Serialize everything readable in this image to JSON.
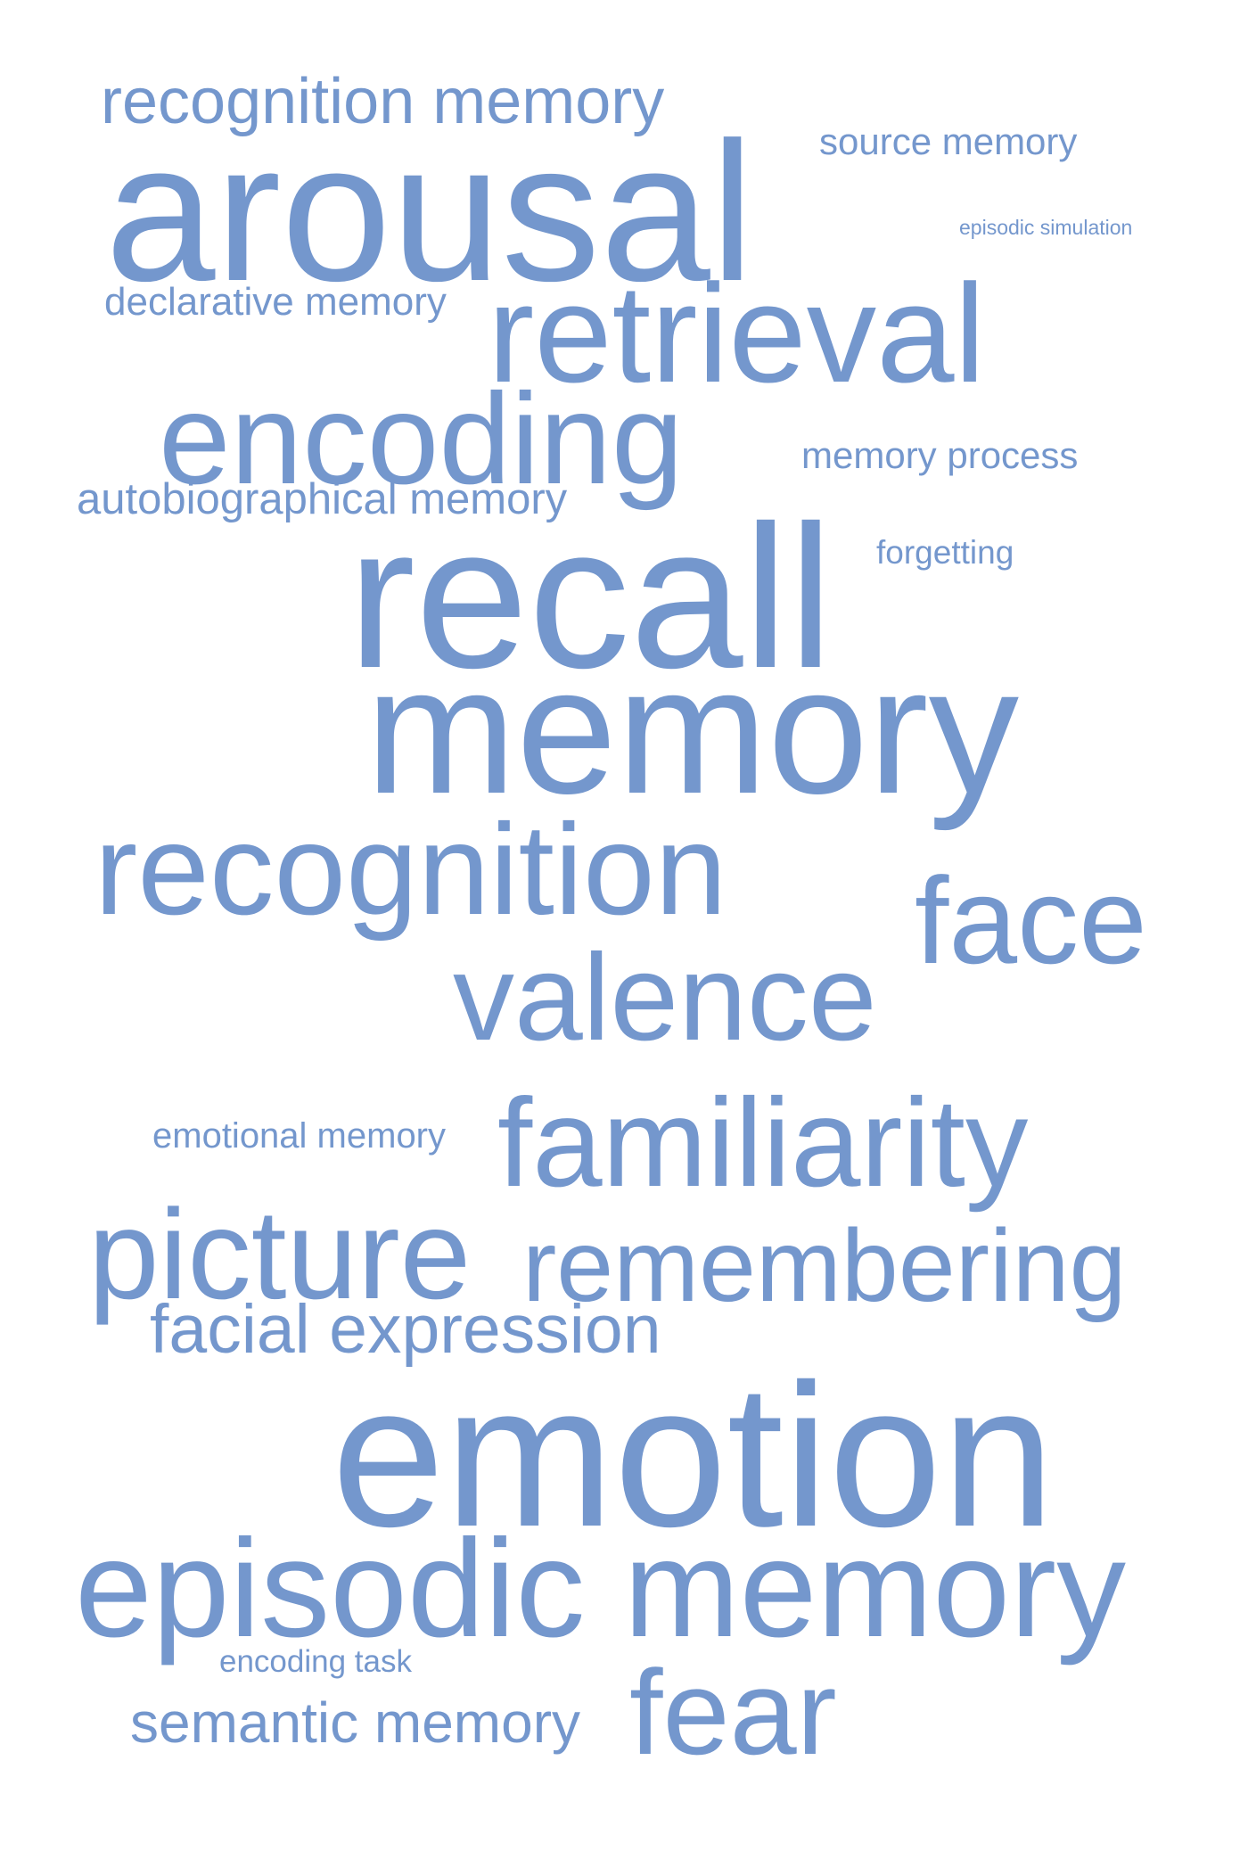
{
  "color": "#7497cd",
  "words": [
    {
      "text": "recognition memory"
    },
    {
      "text": "source memory"
    },
    {
      "text": "arousal"
    },
    {
      "text": "episodic simulation"
    },
    {
      "text": "declarative memory"
    },
    {
      "text": "retrieval"
    },
    {
      "text": "encoding"
    },
    {
      "text": "memory process"
    },
    {
      "text": "autobiographical memory"
    },
    {
      "text": "forgetting"
    },
    {
      "text": "recall"
    },
    {
      "text": "memory"
    },
    {
      "text": "recognition"
    },
    {
      "text": "face"
    },
    {
      "text": "valence"
    },
    {
      "text": "emotional memory"
    },
    {
      "text": "familiarity"
    },
    {
      "text": "picture"
    },
    {
      "text": "remembering"
    },
    {
      "text": "facial expression"
    },
    {
      "text": "emotion"
    },
    {
      "text": "episodic memory"
    },
    {
      "text": "encoding task"
    },
    {
      "text": "semantic memory"
    },
    {
      "text": "fear"
    }
  ]
}
